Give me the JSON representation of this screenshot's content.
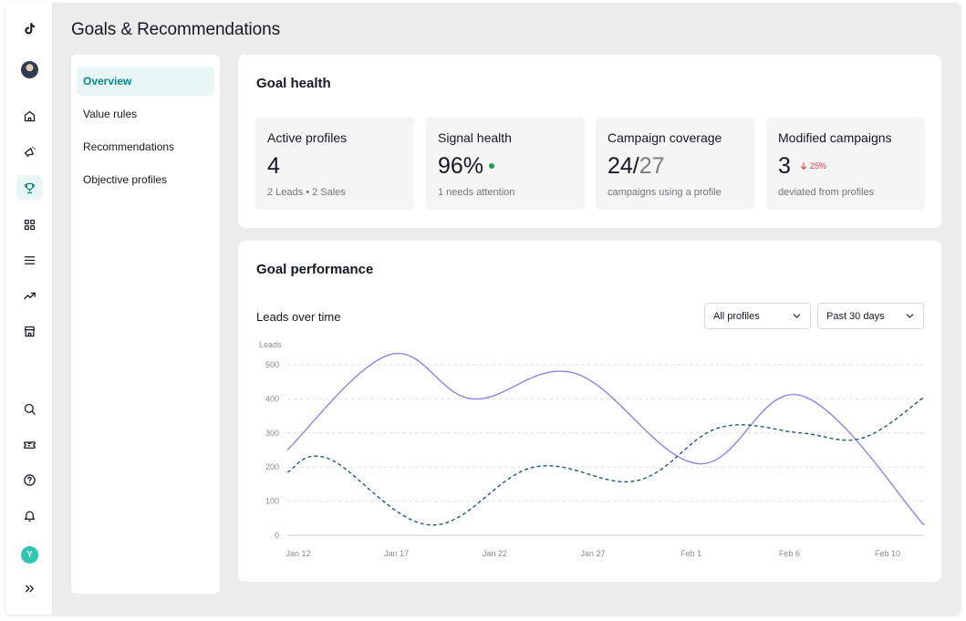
{
  "page": {
    "title": "Goals & Recommendations"
  },
  "rail": {
    "avatar_initial": "Y",
    "icons": [
      "tiktok-logo-icon",
      "home-icon",
      "megaphone-icon",
      "trophy-icon",
      "grid-icon",
      "menu-icon",
      "trend-icon",
      "store-icon",
      "search-icon",
      "ticket-icon",
      "help-icon",
      "bell-icon",
      "expand-icon"
    ]
  },
  "subnav": {
    "items": [
      {
        "label": "Overview",
        "active": true
      },
      {
        "label": "Value rules",
        "active": false
      },
      {
        "label": "Recommendations",
        "active": false
      },
      {
        "label": "Objective profiles",
        "active": false
      }
    ]
  },
  "goal_health": {
    "title": "Goal health",
    "kpis": [
      {
        "label": "Active profiles",
        "value": "4",
        "sub": "2 Leads • 2 Sales"
      },
      {
        "label": "Signal health",
        "value": "96%",
        "sub": "1 needs attention",
        "status_color": "#1f9e53"
      },
      {
        "label": "Campaign coverage",
        "value": "24/",
        "value_muted": "27",
        "sub": "campaigns using a profile"
      },
      {
        "label": "Modified campaigns",
        "value": "3",
        "delta": "25%",
        "delta_color": "#e0343f",
        "sub": "deviated from profiles"
      }
    ]
  },
  "goal_performance": {
    "title": "Goal performance",
    "subtitle": "Leads over time",
    "filters": {
      "profile": "All profiles",
      "range": "Past 30 days"
    }
  },
  "chart_data": {
    "type": "line",
    "ylabel": "Leads",
    "ylim": [
      0,
      500
    ],
    "yticks": [
      0,
      100,
      200,
      300,
      400,
      500
    ],
    "x_ticks": [
      "Jan 12",
      "Jan 17",
      "Jan 22",
      "Jan 27",
      "Feb 1",
      "Feb 6",
      "Feb 10"
    ],
    "grid": true,
    "series": [
      {
        "color": "#8b86e8",
        "dashed": false,
        "points": [
          [
            0,
            250
          ],
          [
            5,
            530
          ],
          [
            9,
            400
          ],
          [
            14,
            475
          ],
          [
            20,
            210
          ],
          [
            25,
            410
          ],
          [
            31,
            30
          ]
        ]
      },
      {
        "color": "#1f5e6e",
        "dashed": true,
        "points": [
          [
            0,
            185
          ],
          [
            2,
            225
          ],
          [
            7,
            30
          ],
          [
            12,
            200
          ],
          [
            17,
            160
          ],
          [
            21,
            315
          ],
          [
            25,
            300
          ],
          [
            28,
            285
          ],
          [
            31,
            405
          ]
        ]
      }
    ]
  }
}
